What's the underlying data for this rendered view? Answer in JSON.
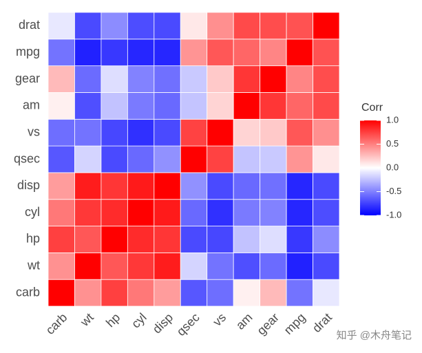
{
  "chart_data": {
    "type": "heatmap",
    "x": [
      "carb",
      "wt",
      "hp",
      "cyl",
      "disp",
      "qsec",
      "vs",
      "am",
      "gear",
      "mpg",
      "drat"
    ],
    "y": [
      "carb",
      "wt",
      "hp",
      "cyl",
      "disp",
      "qsec",
      "vs",
      "am",
      "gear",
      "mpg",
      "drat"
    ],
    "values": [
      [
        1,
        0.43,
        0.75,
        0.53,
        0.39,
        -0.66,
        -0.57,
        0.06,
        0.27,
        -0.55,
        -0.09
      ],
      [
        0.43,
        1,
        0.66,
        0.78,
        0.89,
        -0.17,
        -0.55,
        -0.69,
        -0.58,
        -0.87,
        -0.71
      ],
      [
        0.75,
        0.66,
        1,
        0.83,
        0.79,
        -0.71,
        -0.72,
        -0.24,
        -0.13,
        -0.78,
        -0.45
      ],
      [
        0.53,
        0.78,
        0.83,
        1,
        0.9,
        -0.59,
        -0.81,
        -0.52,
        -0.49,
        -0.85,
        -0.7
      ],
      [
        0.39,
        0.89,
        0.79,
        0.9,
        1,
        -0.43,
        -0.71,
        -0.59,
        -0.56,
        -0.85,
        -0.71
      ],
      [
        -0.66,
        -0.17,
        -0.71,
        -0.59,
        -0.43,
        1,
        0.74,
        -0.23,
        -0.21,
        0.42,
        0.09
      ],
      [
        -0.57,
        -0.55,
        -0.72,
        -0.81,
        -0.71,
        0.74,
        1,
        0.17,
        0.21,
        0.66,
        0.44
      ],
      [
        0.06,
        -0.69,
        -0.24,
        -0.52,
        -0.59,
        -0.23,
        0.17,
        1,
        0.79,
        0.6,
        0.71
      ],
      [
        0.27,
        -0.58,
        -0.13,
        -0.49,
        -0.56,
        -0.21,
        0.21,
        0.79,
        1,
        0.48,
        0.7
      ],
      [
        -0.55,
        -0.87,
        -0.78,
        -0.85,
        -0.85,
        0.42,
        0.66,
        0.6,
        0.48,
        1,
        0.68
      ],
      [
        -0.09,
        -0.71,
        -0.45,
        -0.7,
        -0.71,
        0.09,
        0.44,
        0.71,
        0.7,
        0.68,
        1
      ]
    ],
    "legend_title": "Corr",
    "colorlim": [
      -1,
      1
    ],
    "colorticks": [
      {
        "value": 1,
        "label": "1.0"
      },
      0.5,
      {
        "value": 0,
        "label": "0.0"
      },
      -0.5,
      {
        "value": -1,
        "label": "-1.0"
      }
    ],
    "colors": {
      "low": "#0000ff",
      "mid": "#ffffff",
      "high": "#ff0000"
    },
    "watermark": "知乎 @木舟笔记"
  }
}
